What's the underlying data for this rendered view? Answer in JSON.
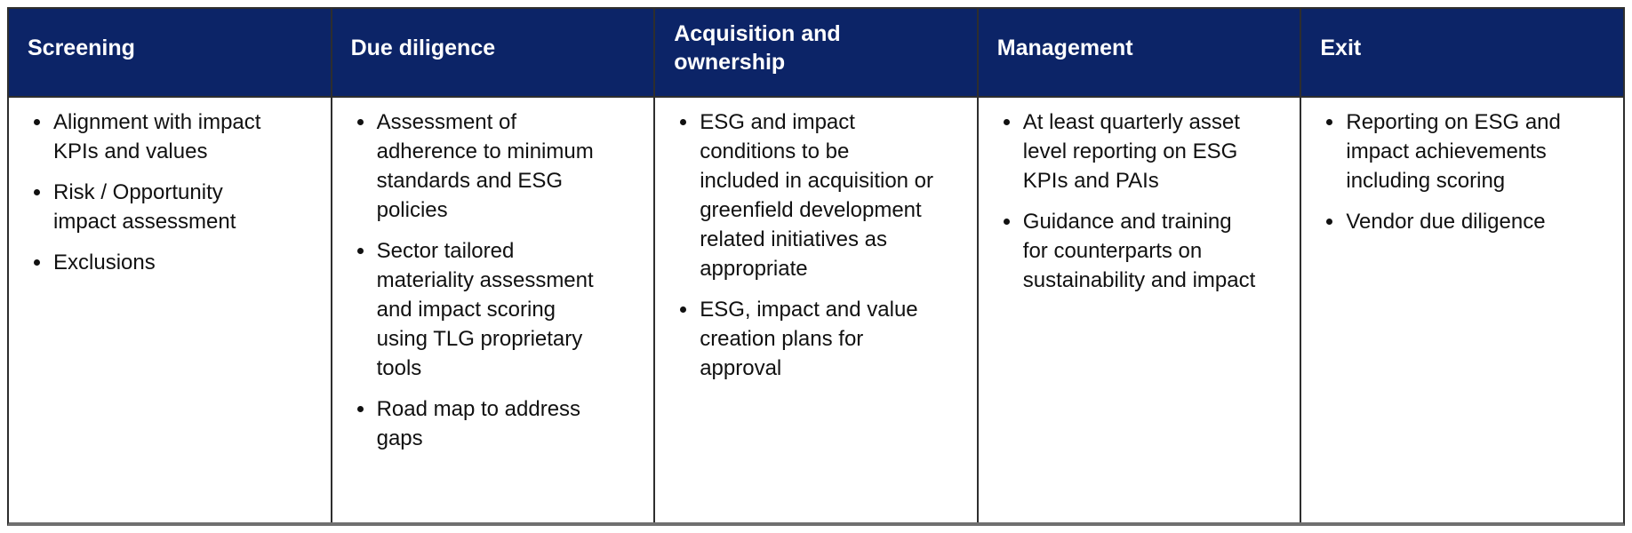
{
  "colors": {
    "header_bg": "#0c2467",
    "header_text": "#ffffff",
    "body_text": "#111111",
    "border": "#2e2e2e",
    "bottom_border": "#6f6f6f",
    "page_bg": "#ffffff"
  },
  "table": {
    "columns": [
      {
        "header": "Screening",
        "items": [
          "Alignment with impact KPIs and values",
          "Risk / Opportunity impact assessment",
          "Exclusions"
        ]
      },
      {
        "header": "Due diligence",
        "items": [
          "Assessment of adherence to minimum standards and ESG policies",
          "Sector tailored materiality assessment and impact scoring using TLG proprietary tools",
          "Road map to address gaps"
        ]
      },
      {
        "header": "Acquisition and ownership",
        "items": [
          "ESG and impact conditions to be included in acquisition or greenfield development related initiatives as appropriate",
          "ESG, impact and value creation plans for approval"
        ]
      },
      {
        "header": "Management",
        "items": [
          "At least quarterly asset level reporting on ESG KPIs and PAIs",
          "Guidance and training for counterparts on sustainability and impact"
        ]
      },
      {
        "header": "Exit",
        "items": [
          "Reporting on ESG and impact achievements including scoring",
          "Vendor due diligence"
        ]
      }
    ]
  }
}
